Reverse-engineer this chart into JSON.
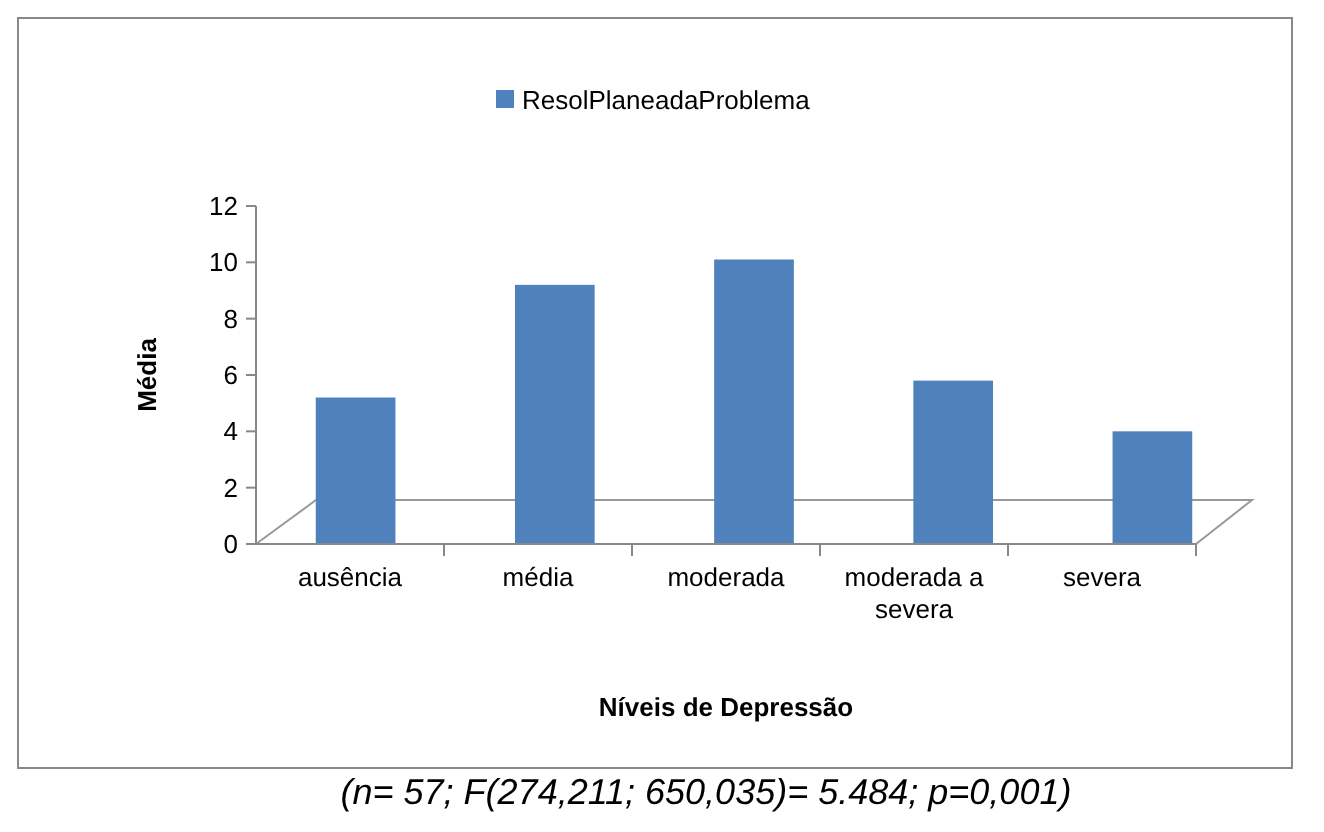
{
  "chart_data": {
    "type": "bar",
    "xlabel": "Níveis de Depressão",
    "ylabel": "Média",
    "categories": [
      "ausência",
      "média",
      "moderada",
      "moderada a severa",
      "severa"
    ],
    "series": [
      {
        "name": "ResolPlaneadaProblema",
        "color": "#4f81bd",
        "values": [
          5.2,
          9.2,
          10.1,
          5.8,
          4.0
        ]
      }
    ],
    "ylim": [
      0,
      12
    ],
    "yticks": [
      0,
      2,
      4,
      6,
      8,
      10,
      12
    ],
    "legend": "top",
    "annotations": [
      "(n= 57; F(274,211; 650,035)= 5.484; p=0,001)"
    ]
  }
}
